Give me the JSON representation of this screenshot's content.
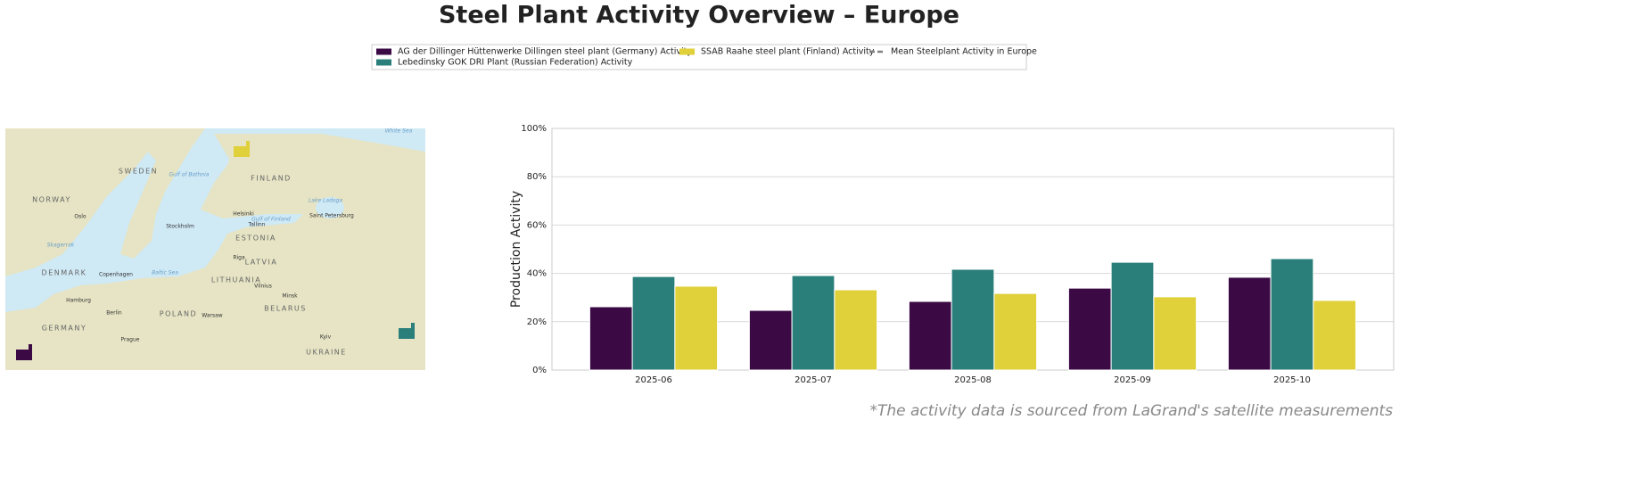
{
  "chart_data": {
    "type": "bar",
    "title": "Steel Plant Activity Overview – Europe",
    "y_label": "Production Activity",
    "footnote": "*The activity data is sourced from LaGrand's satellite measurements",
    "categories": [
      "2025-06",
      "2025-07",
      "2025-08",
      "2025-09",
      "2025-10"
    ],
    "series": [
      {
        "name": "AG der Dillinger Hüttenwerke Dillingen steel plant (Germany) Activity",
        "color": "#3b0a45",
        "values": [
          26.2,
          24.7,
          28.4,
          33.9,
          38.4
        ]
      },
      {
        "name": "Lebedinsky GOK DRI Plant (Russian Federation) Activity",
        "color": "#2a7f7a",
        "values": [
          38.7,
          39.1,
          41.7,
          44.6,
          46.1
        ]
      },
      {
        "name": "SSAB Raahe steel plant (Finland) Activity",
        "color": "#e0d03a",
        "values": [
          34.7,
          33.2,
          31.7,
          30.3,
          28.8
        ]
      }
    ],
    "mean_legend": {
      "name": "Mean Steelplant Activity in Europe",
      "color": "#808080",
      "style": "dashed"
    },
    "ylim": [
      0,
      100
    ],
    "yticks": [
      {
        "value": 0,
        "label": "0%"
      },
      {
        "value": 20,
        "label": "20%"
      },
      {
        "value": 40,
        "label": "40%"
      },
      {
        "value": 60,
        "label": "60%"
      },
      {
        "value": 80,
        "label": "80%"
      },
      {
        "value": 100,
        "label": "100%"
      }
    ],
    "grid": true
  },
  "map": {
    "labels": [
      "SWEDEN",
      "FINLAND",
      "NORWAY",
      "ESTONIA",
      "LATVIA",
      "LITHUANIA",
      "BELARUS",
      "POLAND",
      "UKRAINE",
      "DENMARK",
      "GERMANY",
      "Oslo",
      "Stockholm",
      "Helsinki",
      "Tallinn",
      "Saint Petersburg",
      "Riga",
      "Copenhagen",
      "Vilnius",
      "Minsk",
      "Warsaw",
      "Hamburg",
      "Berlin",
      "Prague",
      "Kyiv",
      "Baltic Sea",
      "White Sea",
      "Lake Ladoga",
      "Gulf of Bothnia",
      "Gulf of Finland",
      "Skagerrak"
    ]
  }
}
